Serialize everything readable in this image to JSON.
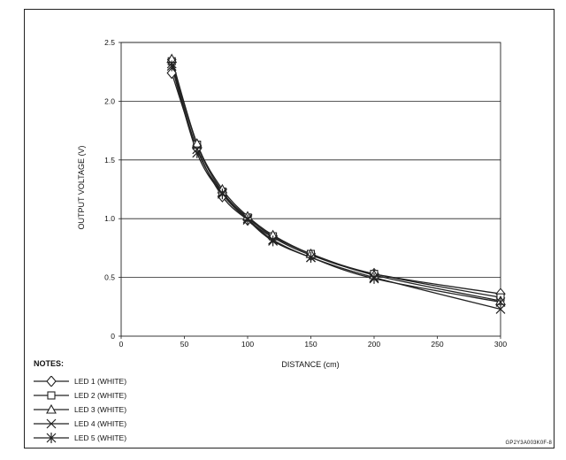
{
  "chart_data": {
    "type": "line",
    "xlabel": "DISTANCE (cm)",
    "ylabel": "OUTPUT VOLTAGE (V)",
    "xlim": [
      0,
      300
    ],
    "ylim": [
      0,
      2.5
    ],
    "x_ticks": [
      "0",
      "50",
      "100",
      "150",
      "200",
      "250",
      "300"
    ],
    "y_ticks": [
      "0",
      "0.5",
      "1.0",
      "1.5",
      "2.0",
      "2.5"
    ],
    "grid": "horizontal",
    "x": [
      40,
      60,
      80,
      100,
      120,
      150,
      200,
      300
    ],
    "series": [
      {
        "name": "LED 1 (WHITE)",
        "marker": "diamond",
        "values": [
          2.24,
          1.6,
          1.19,
          0.99,
          0.84,
          0.69,
          0.53,
          0.36
        ]
      },
      {
        "name": "LED 2 (WHITE)",
        "marker": "square",
        "values": [
          2.34,
          1.63,
          1.23,
          1.01,
          0.85,
          0.7,
          0.53,
          0.33
        ]
      },
      {
        "name": "LED 3 (WHITE)",
        "marker": "triangle",
        "values": [
          2.36,
          1.64,
          1.25,
          1.02,
          0.86,
          0.7,
          0.52,
          0.3
        ]
      },
      {
        "name": "LED 4 (WHITE)",
        "marker": "x",
        "values": [
          2.32,
          1.59,
          1.22,
          1.0,
          0.82,
          0.67,
          0.5,
          0.23
        ]
      },
      {
        "name": "LED 5 (WHITE)",
        "marker": "star",
        "values": [
          2.3,
          1.56,
          1.21,
          0.99,
          0.81,
          0.67,
          0.49,
          0.29
        ]
      }
    ],
    "legend_title": "NOTES:",
    "legend_position": "bottom-left"
  },
  "footer_code": "GP2Y3A003K0F-8",
  "colors": {
    "line": "#222222",
    "grid": "#222222"
  }
}
